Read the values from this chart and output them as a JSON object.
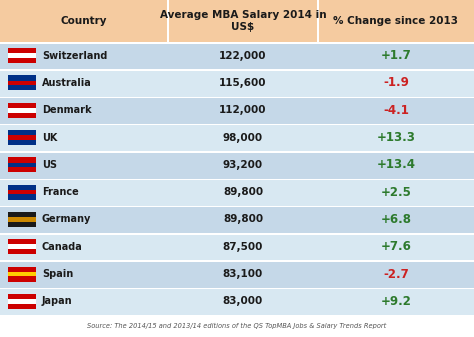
{
  "col1_header": "Country",
  "col2_header": "Average MBA Salary 2014 in\nUS$",
  "col3_header": "% Change since 2013",
  "rows": [
    {
      "country": "Switzerland",
      "salary": "122,000",
      "change": "+1.7",
      "positive": true
    },
    {
      "country": "Australia",
      "salary": "115,600",
      "change": "-1.9",
      "positive": false
    },
    {
      "country": "Denmark",
      "salary": "112,000",
      "change": "-4.1",
      "positive": false
    },
    {
      "country": "UK",
      "salary": "98,000",
      "change": "+13.3",
      "positive": true
    },
    {
      "country": "US",
      "salary": "93,200",
      "change": "+13.4",
      "positive": true
    },
    {
      "country": "France",
      "salary": "89,800",
      "change": "+2.5",
      "positive": true
    },
    {
      "country": "Germany",
      "salary": "89,800",
      "change": "+6.8",
      "positive": true
    },
    {
      "country": "Canada",
      "salary": "87,500",
      "change": "+7.6",
      "positive": true
    },
    {
      "country": "Spain",
      "salary": "83,100",
      "change": "-2.7",
      "positive": false
    },
    {
      "country": "Japan",
      "salary": "83,000",
      "change": "+9.2",
      "positive": true
    }
  ],
  "source_text": "Source: The 2014/15 and 2013/14 editions of the QS TopMBA Jobs & Salary Trends Report",
  "header_bg": "#f5cbA0",
  "row_bg": "#c5d8e8",
  "row_bg_alt": "#d8e8f2",
  "positive_color": "#2d7a2d",
  "negative_color": "#cc2222",
  "text_color": "#1a1a1a",
  "bg_color": "#ffffff",
  "sep_color": "#ffffff",
  "flag_colors": {
    "Switzerland": [
      "#cc0000",
      "#ffffff"
    ],
    "Australia": [
      "#003087",
      "#cc0000"
    ],
    "Denmark": [
      "#cc0000",
      "#ffffff"
    ],
    "UK": [
      "#003087",
      "#cc0000"
    ],
    "US": [
      "#cc0000",
      "#003087"
    ],
    "France": [
      "#003087",
      "#cc0000"
    ],
    "Germany": [
      "#1a1a1a",
      "#cc8800"
    ],
    "Canada": [
      "#cc0000",
      "#ffffff"
    ],
    "Spain": [
      "#cc0000",
      "#ffcc00"
    ],
    "Japan": [
      "#cc0000",
      "#ffffff"
    ]
  }
}
